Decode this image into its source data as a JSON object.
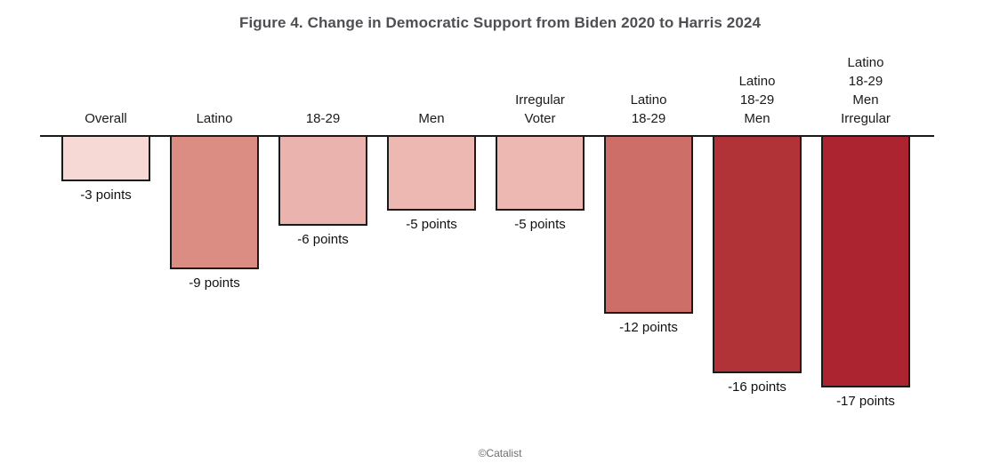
{
  "title": "Figure 4. Change in Democratic Support from Biden 2020 to Harris 2024",
  "footer": {
    "credit": "©Catalist"
  },
  "colors": {
    "background": "#ffffff",
    "title_text": "#4e4f53",
    "axis_line": "#1a1a1a",
    "category_label_text": "#1a1a1a",
    "value_label_text": "#111111",
    "footer_text": "#6e6e6e",
    "bar_border": "#1a1a1a"
  },
  "chart_data": {
    "type": "bar",
    "title": "Figure 4. Change in Democratic Support from Biden 2020 to Harris 2024",
    "xlabel": "",
    "ylabel": "",
    "unit": "points",
    "orientation": "vertical-negative",
    "grid": false,
    "legend": "none",
    "ylim": [
      -18,
      0
    ],
    "baseline": 0,
    "categories": [
      "Overall",
      "Latino",
      "18-29",
      "Men",
      "Irregular\nVoter",
      "Latino\n18-29",
      "Latino\n18-29\nMen",
      "Latino\n18-29\nMen\nIrregular"
    ],
    "values": [
      -3,
      -9,
      -6,
      -5,
      -5,
      -12,
      -16,
      -17
    ],
    "value_labels": [
      "-3 points",
      "-9 points",
      "-6 points",
      "-5 points",
      "-5 points",
      "-12 points",
      "-16 points",
      "-17 points"
    ],
    "bar_colors": [
      "#f6d9d4",
      "#db8d84",
      "#eab3ad",
      "#edb8b2",
      "#edb8b2",
      "#cd6f68",
      "#b23337",
      "#ac2430"
    ]
  }
}
